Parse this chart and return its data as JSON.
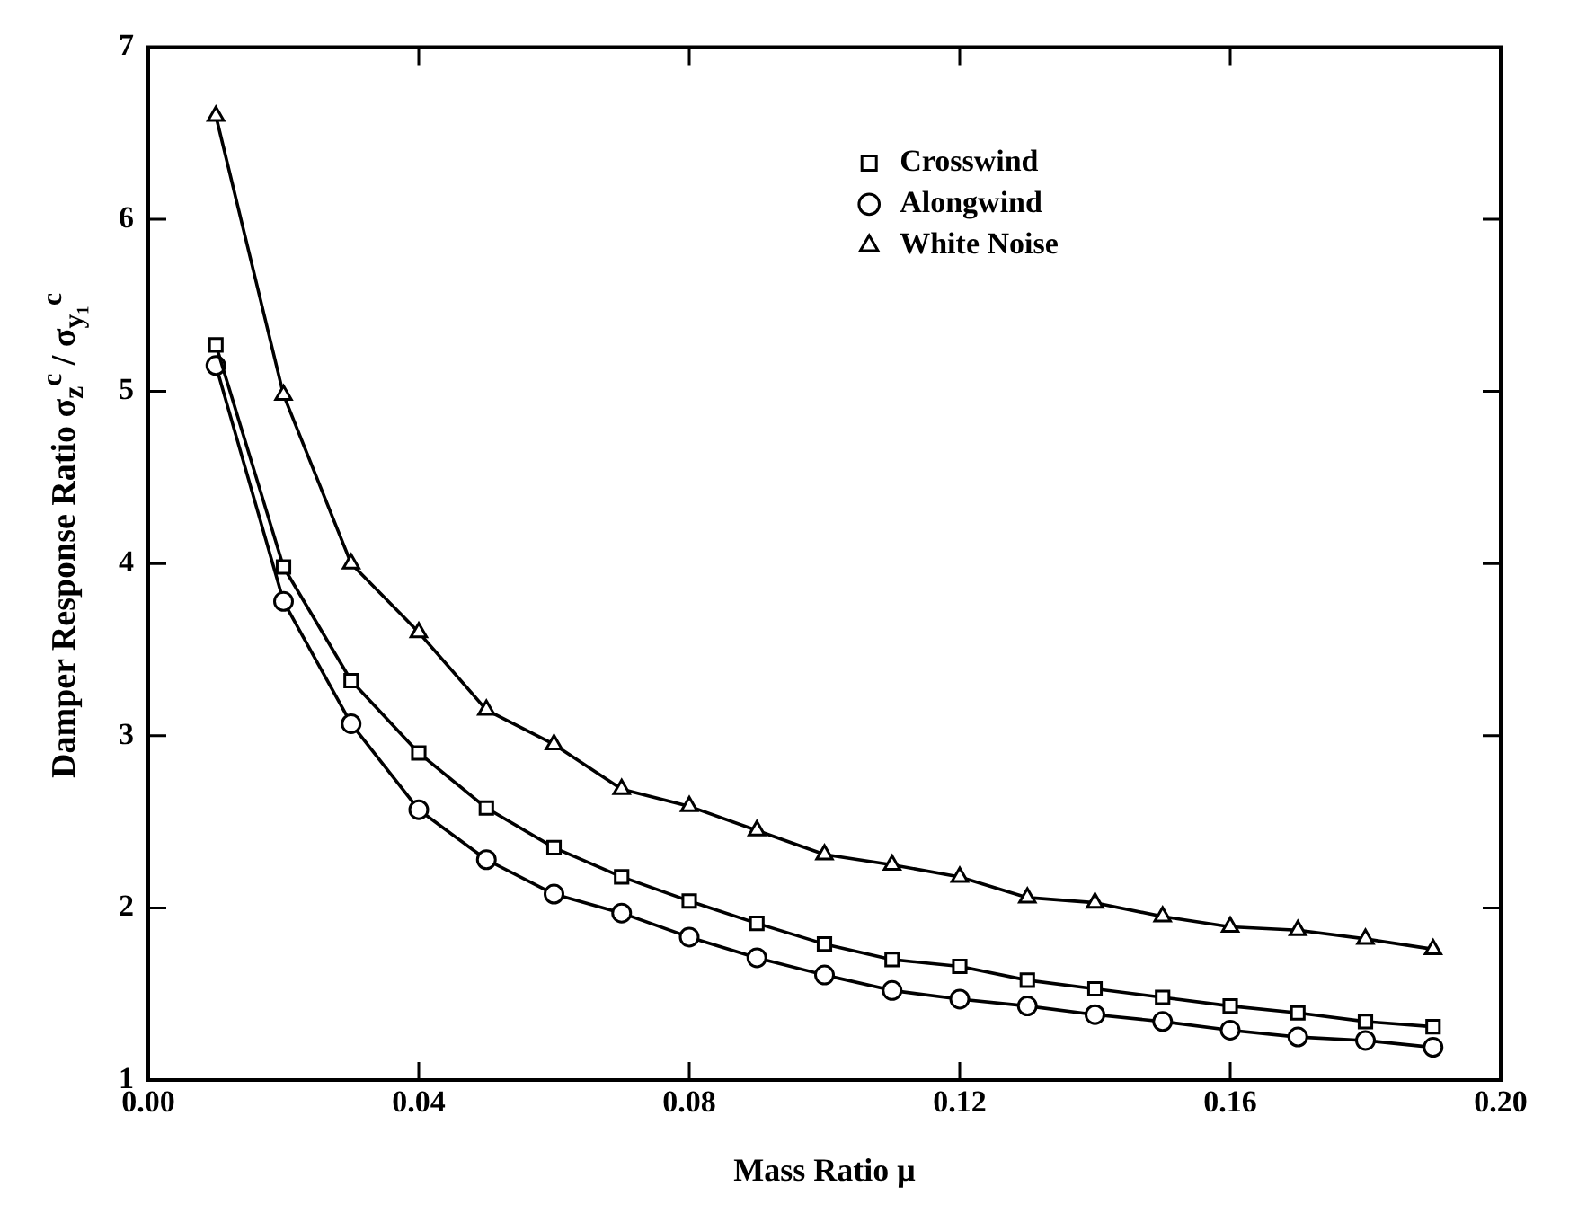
{
  "chart_data": {
    "type": "line",
    "xlabel": "Mass Ratio μ",
    "ylabel": "Damper Response Ratio σ$_{z}$$^{c}$ / σ$_{y₁}$$^{c}$",
    "x": [
      0.01,
      0.02,
      0.03,
      0.04,
      0.05,
      0.06,
      0.07,
      0.08,
      0.09,
      0.1,
      0.11,
      0.12,
      0.13,
      0.14,
      0.15,
      0.16,
      0.17,
      0.18,
      0.19
    ],
    "series": [
      {
        "name": "Crosswind",
        "color": "#000000",
        "marker": "square",
        "values": [
          5.27,
          3.98,
          3.32,
          2.9,
          2.58,
          2.35,
          2.18,
          2.04,
          1.91,
          1.79,
          1.7,
          1.66,
          1.58,
          1.53,
          1.48,
          1.43,
          1.39,
          1.34,
          1.31
        ]
      },
      {
        "name": "Alongwind",
        "color": "#000000",
        "marker": "circle",
        "values": [
          5.15,
          3.78,
          3.07,
          2.57,
          2.28,
          2.08,
          1.97,
          1.83,
          1.71,
          1.61,
          1.52,
          1.47,
          1.43,
          1.38,
          1.34,
          1.29,
          1.25,
          1.23,
          1.19
        ]
      },
      {
        "name": "White Noise",
        "color": "#000000",
        "marker": "triangle",
        "values": [
          6.6,
          4.98,
          4.0,
          3.6,
          3.15,
          2.95,
          2.69,
          2.59,
          2.45,
          2.31,
          2.25,
          2.18,
          2.06,
          2.03,
          1.95,
          1.89,
          1.87,
          1.82,
          1.76
        ]
      }
    ],
    "xlim": [
      0,
      0.2
    ],
    "xticks": [
      {
        "value": 0,
        "label": "0.00"
      },
      {
        "value": 0.04,
        "label": "0.04"
      },
      {
        "value": 0.08,
        "label": "0.08"
      },
      {
        "value": 0.12,
        "label": "0.12"
      },
      {
        "value": 0.16,
        "label": "0.16"
      },
      {
        "value": 0.2,
        "label": "0.20"
      }
    ],
    "ylim": [
      1,
      7
    ],
    "yticks": [
      1,
      2,
      3,
      4,
      5,
      6,
      7
    ],
    "grid": false,
    "legend": "top right",
    "line_style": "solid"
  }
}
